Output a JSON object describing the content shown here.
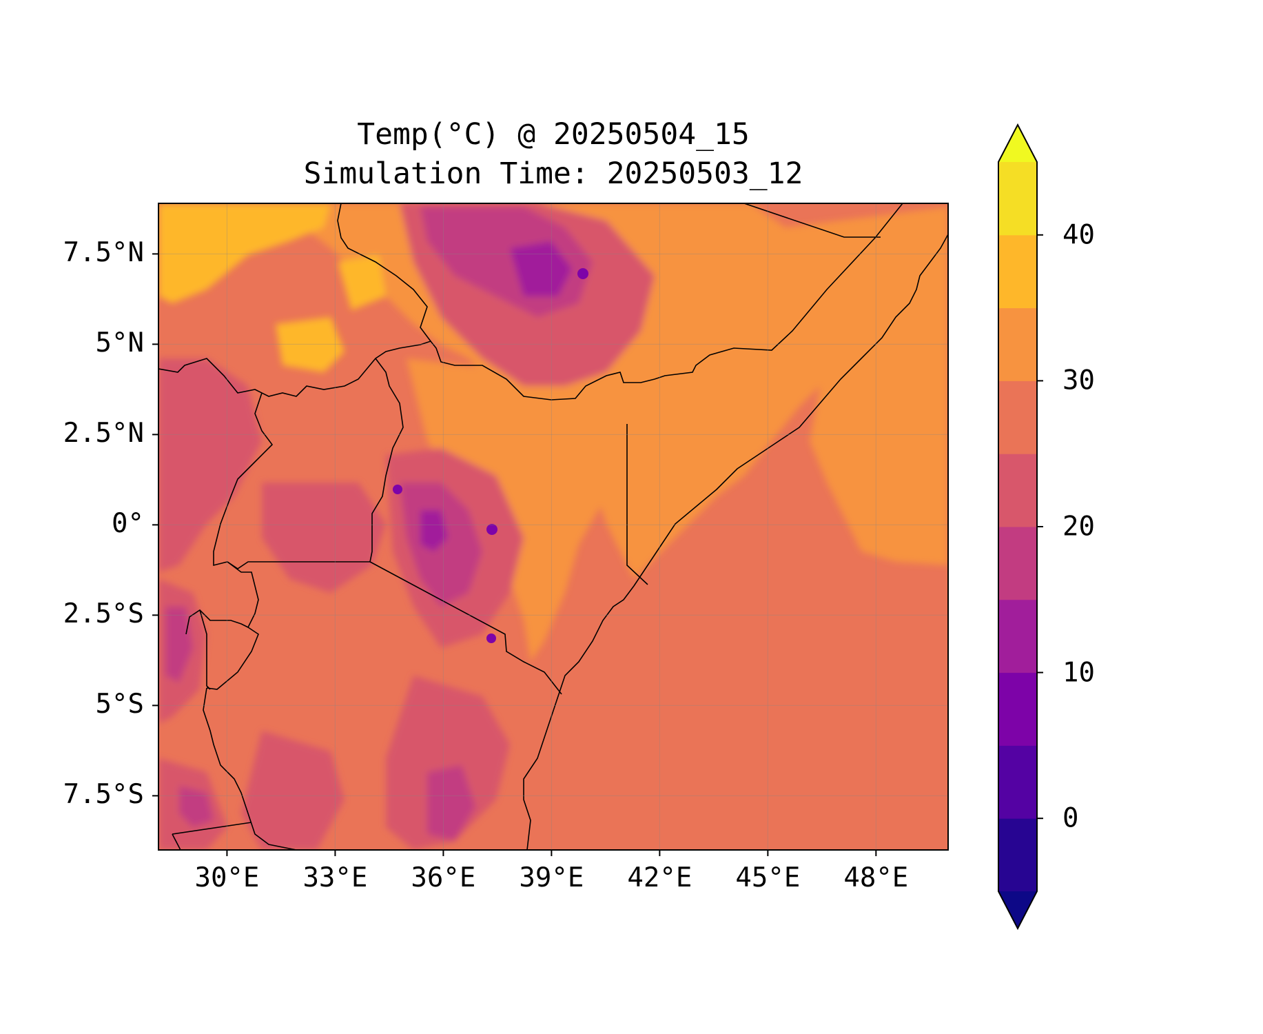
{
  "chart_data": {
    "type": "heatmap",
    "title": "Temp(°C) @ 20250504_15",
    "subtitle": "Simulation Time: 20250503_12",
    "x_ticks": [
      "30°E",
      "33°E",
      "36°E",
      "39°E",
      "42°E",
      "45°E",
      "48°E"
    ],
    "x_tick_values": [
      30,
      33,
      36,
      39,
      42,
      45,
      48
    ],
    "y_ticks": [
      "7.5°N",
      "5°N",
      "2.5°N",
      "0°",
      "2.5°S",
      "5°S",
      "7.5°S"
    ],
    "y_tick_values": [
      7.5,
      5,
      2.5,
      0,
      -2.5,
      -5,
      -7.5
    ],
    "xlim": [
      28.1,
      50.0
    ],
    "ylim": [
      -9.0,
      8.9
    ],
    "grid": true,
    "colorbar": {
      "ticks": [
        "0",
        "10",
        "20",
        "30",
        "40"
      ],
      "tick_values": [
        0,
        10,
        20,
        30,
        40
      ],
      "levels": [
        -5,
        0,
        5,
        10,
        15,
        20,
        25,
        30,
        35,
        40,
        45
      ],
      "extend": "both",
      "colors": [
        "#0d0887",
        "#270592",
        "#5402a3",
        "#7d03a8",
        "#a11e9b",
        "#c23c81",
        "#d8576b",
        "#ea7457",
        "#f79340",
        "#feb72a",
        "#f5de25",
        "#f0f921"
      ]
    }
  }
}
